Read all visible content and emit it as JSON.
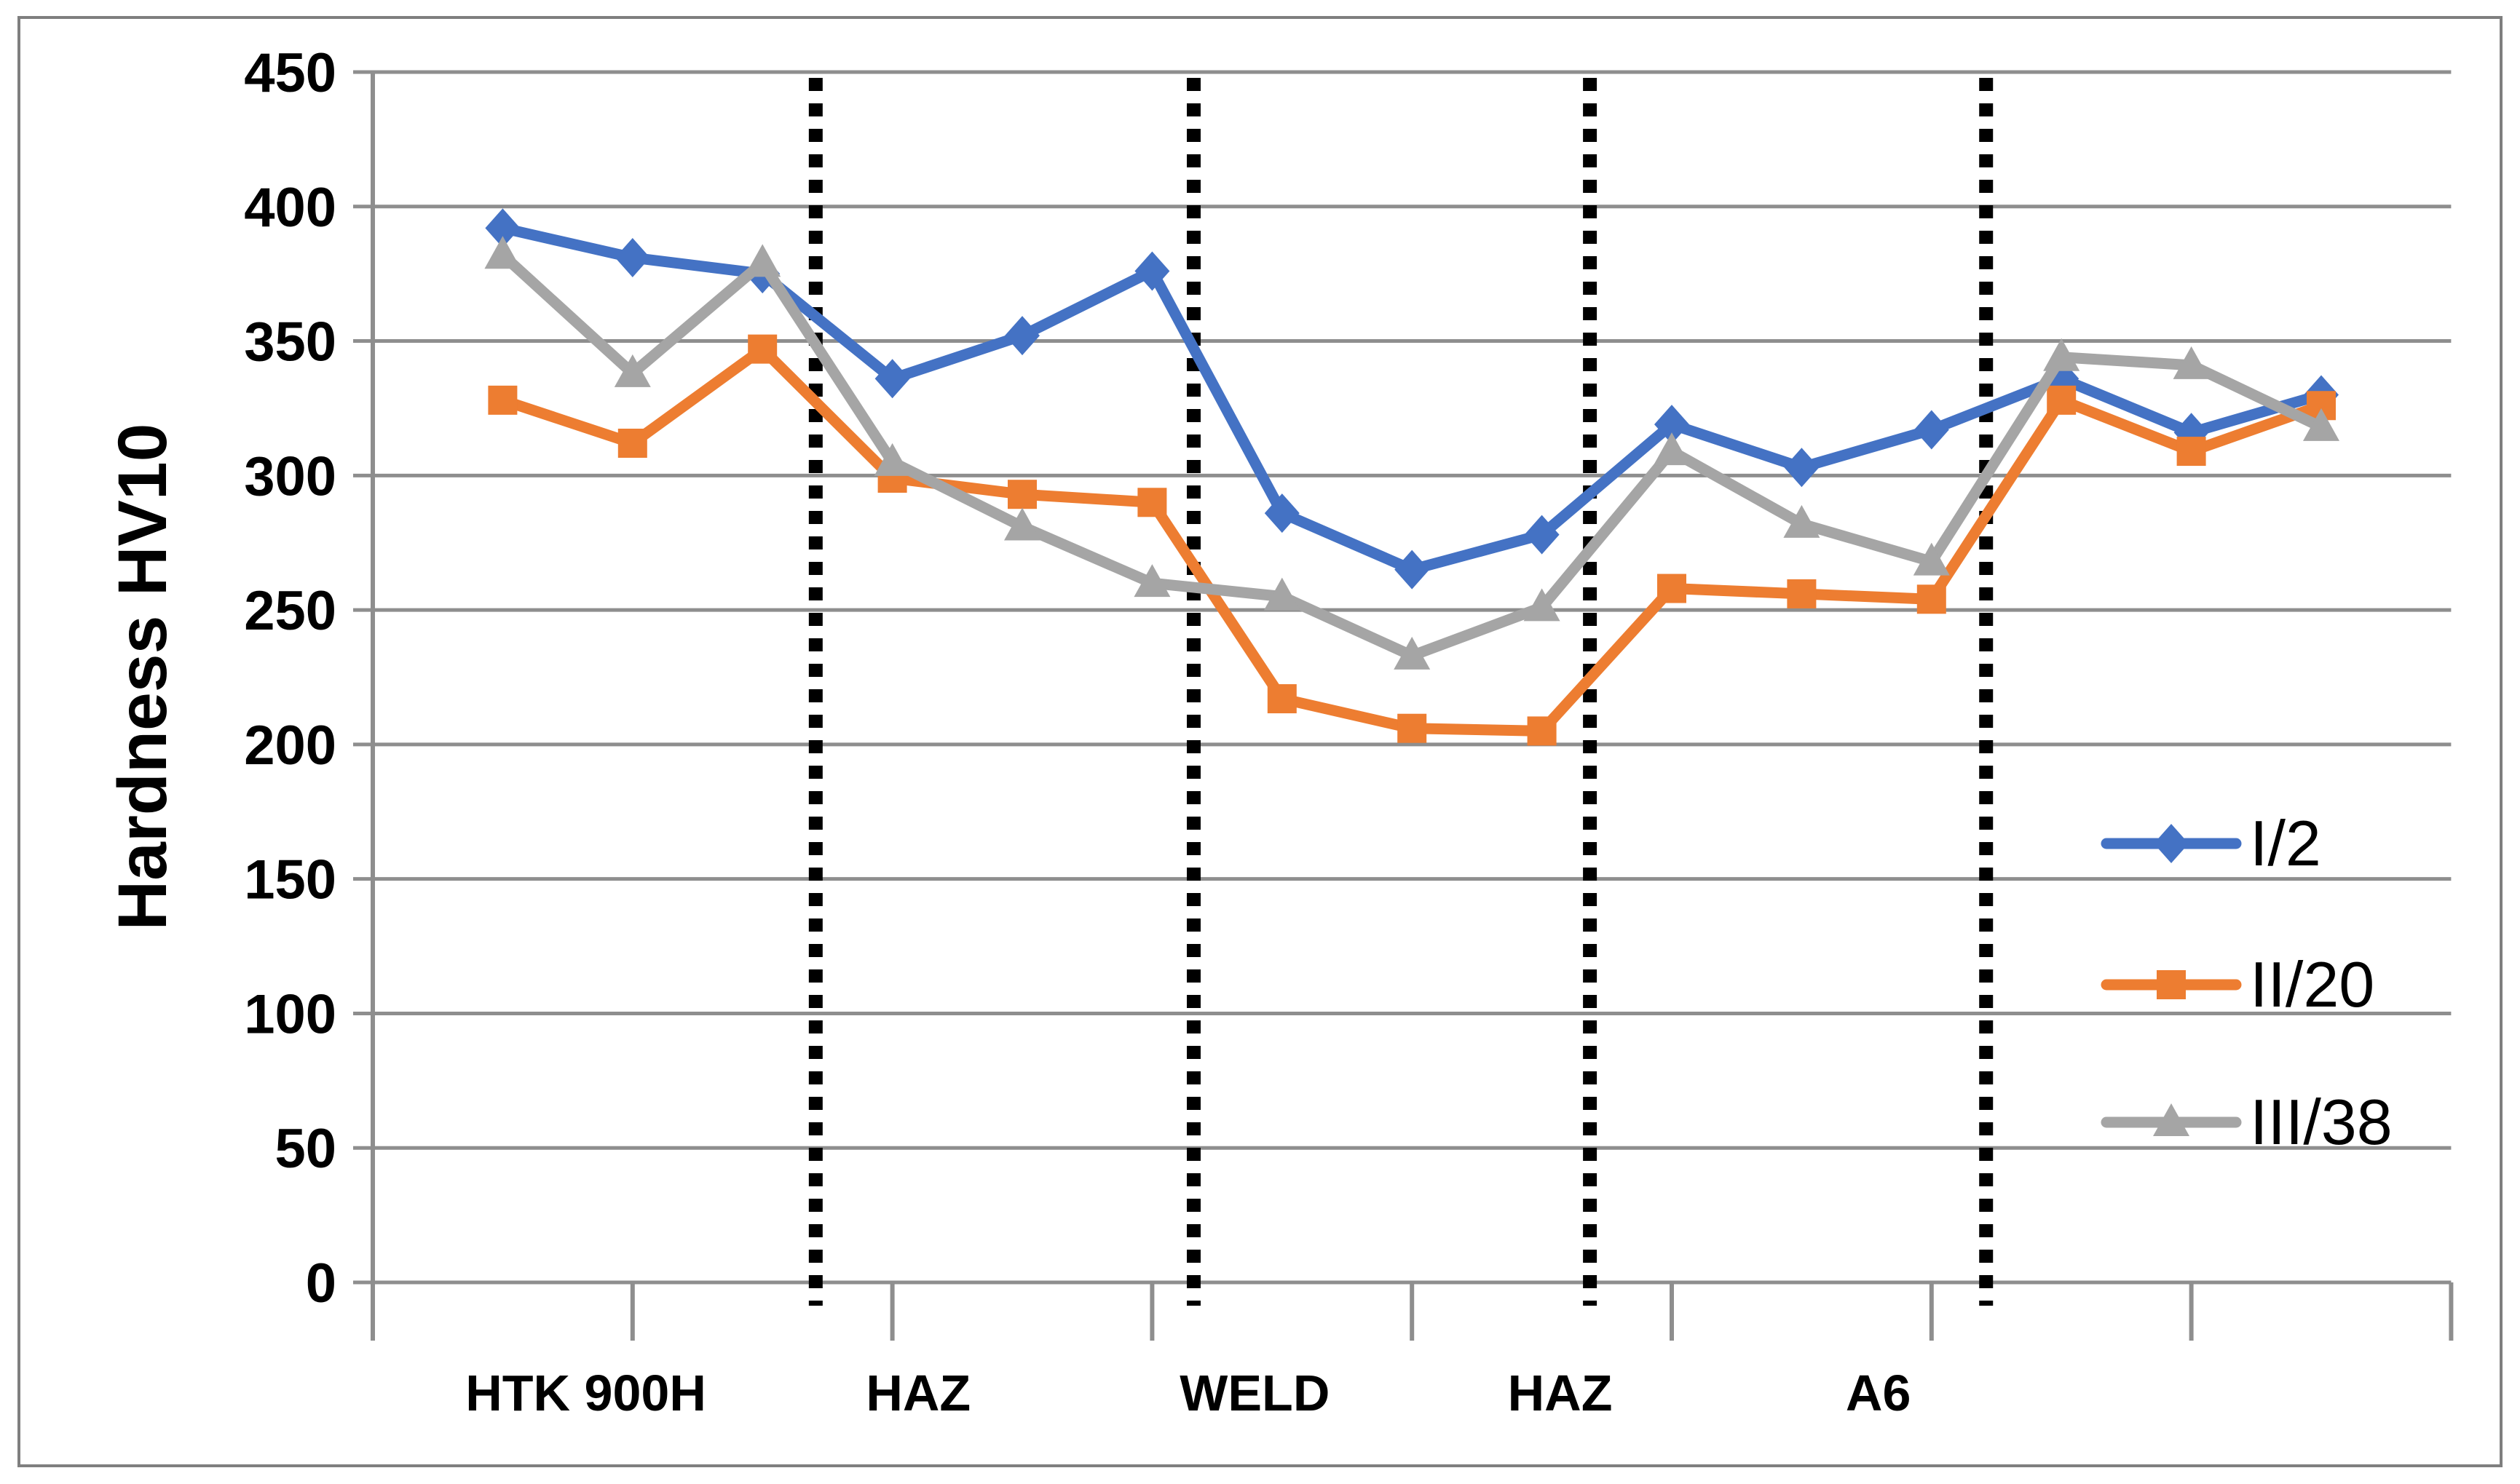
{
  "chart_data": {
    "type": "line",
    "title": "",
    "xlabel": "",
    "ylabel": "Hardness HV10",
    "ylim": [
      0,
      450
    ],
    "ytick_step": 50,
    "yticks": [
      0,
      50,
      100,
      150,
      200,
      250,
      300,
      350,
      400,
      450
    ],
    "grid": "horizontal",
    "n_points": 15,
    "x": [
      1,
      2,
      3,
      4,
      5,
      6,
      7,
      8,
      9,
      10,
      11,
      12,
      13,
      14,
      15
    ],
    "series": [
      {
        "name": "I/2",
        "color": "#4472C4",
        "marker": "diamond",
        "values": [
          392,
          381,
          375,
          336,
          352,
          376,
          286,
          265,
          278,
          319,
          303,
          317,
          336,
          316,
          330
        ]
      },
      {
        "name": "II/20",
        "color": "#ED7D31",
        "marker": "square",
        "values": [
          328,
          312,
          347,
          299,
          293,
          290,
          217,
          206,
          205,
          258,
          256,
          254,
          328,
          309,
          326
        ]
      },
      {
        "name": "III/38",
        "color": "#A5A5A5",
        "marker": "triangle",
        "values": [
          382,
          338,
          379,
          305,
          281,
          260,
          255,
          233,
          251,
          309,
          282,
          268,
          344,
          341,
          318
        ]
      }
    ],
    "zone_labels": [
      {
        "label": "HTK 900H",
        "at": 1.64
      },
      {
        "label": "HAZ",
        "at": 4.2
      },
      {
        "label": "WELD",
        "at": 6.79
      },
      {
        "label": "HAZ",
        "at": 9.14
      },
      {
        "label": "A6",
        "at": 11.59
      }
    ],
    "separators_at": [
      3.41,
      6.32,
      9.37,
      12.42
    ],
    "legend": {
      "position": "right-middle",
      "entries": [
        "I/2",
        "II/20",
        "III/38"
      ]
    },
    "colors": {
      "grid": "#8E8E8E",
      "axis": "#8E8E8E",
      "separator": "#000000",
      "text": "#000000",
      "frame": "#7F7F7F",
      "background": "#FFFFFF"
    }
  }
}
